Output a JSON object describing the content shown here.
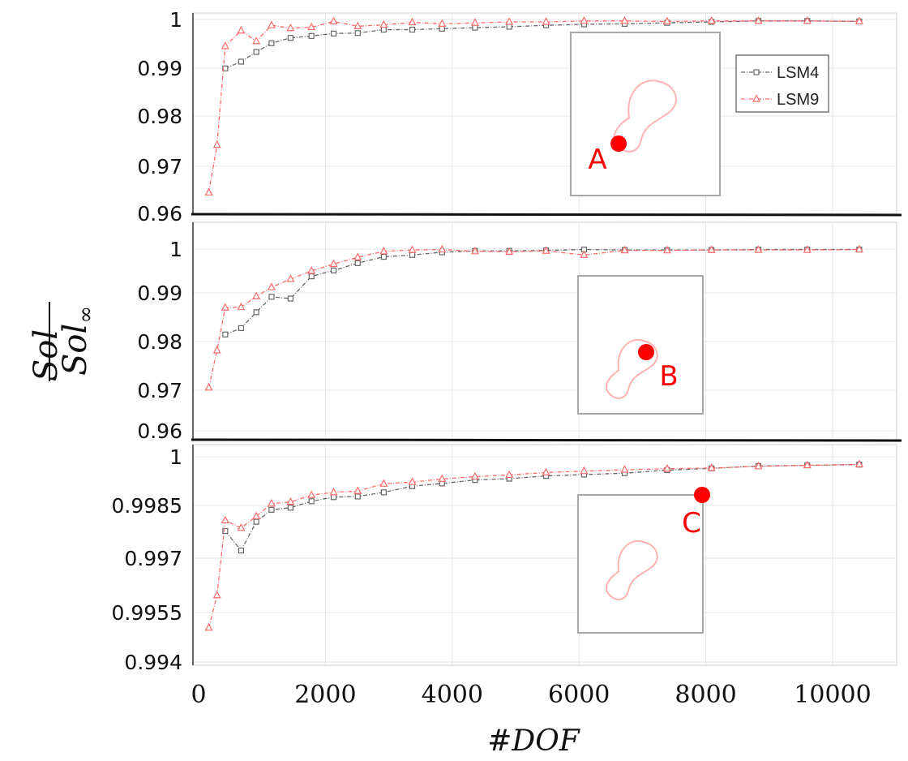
{
  "colors": {
    "lsm4": "#666666",
    "lsm9": "#ff6b6b",
    "point": "#ff0000",
    "shape": "#ffb3b3",
    "grid": "#e6e6e6"
  },
  "axes": {
    "xlabel": "#DOF",
    "ylabel_num": "Sol",
    "ylabel_den_base": "Sol",
    "ylabel_den_sub": "∞"
  },
  "legend": {
    "entries": [
      "LSM4",
      "LSM9"
    ],
    "placement": "inside top panel, top-right"
  },
  "chart_data": [
    {
      "type": "line",
      "panel": "top",
      "title": "",
      "xlabel": "",
      "ylabel": "",
      "xlim": [
        0,
        11000
      ],
      "ylim": [
        0.96,
        1.0005
      ],
      "yticks": [
        0.96,
        0.97,
        0.98,
        0.99,
        1
      ],
      "ytick_labels": [
        "0.96",
        "0.97",
        "0.98",
        "0.99",
        "1"
      ],
      "grid": true,
      "inset": {
        "label": "A",
        "description_point": "red dot on lower-left end of dumbbell shape"
      },
      "series": [
        {
          "name": "LSM4",
          "marker": "square",
          "x": [
            420,
            670,
            910,
            1150,
            1450,
            1780,
            2130,
            2510,
            2920,
            3370,
            3840,
            4360,
            4900,
            5480,
            6080,
            6720,
            7390,
            8090,
            8830,
            9600,
            10420
          ],
          "y": [
            0.9899,
            0.9913,
            0.9933,
            0.9951,
            0.9962,
            0.9966,
            0.9971,
            0.9972,
            0.9979,
            0.9979,
            0.9981,
            0.9983,
            0.9985,
            0.9988,
            0.999,
            0.9991,
            0.9993,
            0.9995,
            0.9997,
            0.9997,
            0.9996
          ]
        },
        {
          "name": "LSM9",
          "marker": "triangle",
          "x": [
            160,
            290,
            420,
            670,
            910,
            1150,
            1450,
            1780,
            2130,
            2510,
            2920,
            3370,
            3840,
            4360,
            4900,
            5480,
            6080,
            6720,
            7390,
            8090,
            8830,
            9600,
            10420
          ],
          "y": [
            0.9643,
            0.9741,
            0.9945,
            0.9977,
            0.9955,
            0.9988,
            0.9982,
            0.9984,
            0.9996,
            0.9986,
            0.9989,
            0.9994,
            0.9991,
            0.9993,
            0.9995,
            0.9995,
            0.9997,
            0.9997,
            0.9996,
            0.9997,
            0.9997,
            0.9997,
            0.9996
          ]
        }
      ]
    },
    {
      "type": "line",
      "panel": "middle",
      "title": "",
      "xlabel": "",
      "ylabel": "",
      "xlim": [
        0,
        11000
      ],
      "ylim": [
        0.96,
        1.0045
      ],
      "yticks": [
        0.96,
        0.97,
        0.98,
        0.99,
        1
      ],
      "ytick_labels": [
        "0.96",
        "0.97",
        "0.98",
        "0.99",
        "1"
      ],
      "grid": true,
      "inset": {
        "label": "B",
        "description_point": "red dot at neck of dumbbell shape"
      },
      "series": [
        {
          "name": "LSM4",
          "marker": "square",
          "x": [
            420,
            670,
            910,
            1150,
            1450,
            1780,
            2130,
            2510,
            2920,
            3370,
            3840,
            4360,
            4900,
            5480,
            6080,
            6720,
            7390,
            8090,
            8830,
            9600,
            10420
          ],
          "y": [
            0.9812,
            0.9826,
            0.9861,
            0.9895,
            0.9891,
            0.994,
            0.9953,
            0.9969,
            0.9983,
            0.9987,
            0.9993,
            0.9996,
            0.9996,
            0.9997,
            0.9999,
            0.9998,
            0.9998,
            0.9998,
            0.9999,
            0.9999,
            0.9999
          ]
        },
        {
          "name": "LSM9",
          "marker": "triangle",
          "x": [
            160,
            290,
            420,
            670,
            910,
            1150,
            1450,
            1780,
            2130,
            2510,
            2920,
            3370,
            3840,
            4360,
            4900,
            5480,
            6080,
            6720,
            7390,
            8090,
            8830,
            9600,
            10420
          ],
          "y": [
            0.9695,
            0.9777,
            0.9871,
            0.9872,
            0.9896,
            0.9916,
            0.9934,
            0.9952,
            0.9967,
            0.9982,
            0.9995,
            0.9998,
            0.9999,
            0.9995,
            0.9994,
            0.9996,
            0.9987,
            0.9997,
            0.9997,
            0.9998,
            0.9998,
            0.9998,
            0.9999
          ]
        }
      ]
    },
    {
      "type": "line",
      "panel": "bottom",
      "title": "",
      "xlabel": "#DOF",
      "ylabel": "",
      "xlim": [
        0,
        11000
      ],
      "ylim": [
        0.994,
        1.0001
      ],
      "yticks": [
        0.994,
        0.9955,
        0.997,
        0.9985,
        1
      ],
      "ytick_labels": [
        "0.994",
        "0.9955",
        "0.997",
        "0.9985",
        "1"
      ],
      "xticks": [
        0,
        2000,
        4000,
        6000,
        8000,
        10000
      ],
      "xtick_labels": [
        "0",
        "2000",
        "4000",
        "6000",
        "8000",
        "10000"
      ],
      "grid": true,
      "inset": {
        "label": "C",
        "description_point": "red dot at upper-right corner of domain"
      },
      "series": [
        {
          "name": "LSM4",
          "marker": "square",
          "x": [
            420,
            670,
            910,
            1150,
            1450,
            1780,
            2130,
            2510,
            2920,
            3370,
            3840,
            4360,
            4900,
            5480,
            6080,
            6720,
            7390,
            8090,
            8830,
            9600,
            10420
          ],
          "y": [
            0.99783,
            0.99726,
            0.9981,
            0.99845,
            0.99851,
            0.9987,
            0.99882,
            0.99884,
            0.99896,
            0.99914,
            0.99922,
            0.99932,
            0.99936,
            0.99944,
            0.99948,
            0.99952,
            0.99961,
            0.99966,
            0.99973,
            0.99975,
            0.99977
          ]
        },
        {
          "name": "LSM9",
          "marker": "triangle",
          "x": [
            160,
            290,
            420,
            670,
            910,
            1150,
            1450,
            1780,
            2130,
            2510,
            2920,
            3370,
            3840,
            4360,
            4900,
            5480,
            6080,
            6720,
            7390,
            8090,
            8830,
            9600,
            10420
          ],
          "y": [
            0.995,
            0.99595,
            0.99814,
            0.99792,
            0.99826,
            0.99863,
            0.99868,
            0.99888,
            0.99896,
            0.999,
            0.99921,
            0.99926,
            0.99935,
            0.99942,
            0.99947,
            0.99954,
            0.99958,
            0.99962,
            0.99965,
            0.99967,
            0.99972,
            0.99975,
            0.99978
          ]
        }
      ]
    }
  ]
}
